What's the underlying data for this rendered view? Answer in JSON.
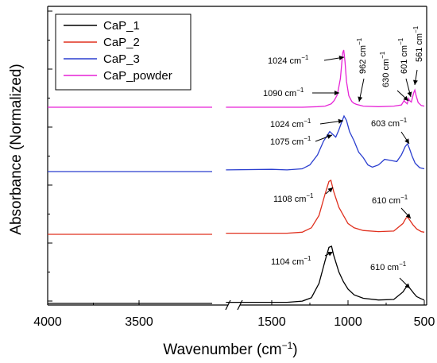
{
  "chart_data": {
    "type": "line",
    "xlabel": "Wavenumber (cm",
    "xlabel_sup": "−1",
    "xlabel_close": ")",
    "ylabel": "Absorbance (Normalized)",
    "x_reversed": true,
    "x_axis_break": [
      3100,
      1800
    ],
    "x_ticks": [
      {
        "value": 4000,
        "label": "4000"
      },
      {
        "value": 3500,
        "label": "3500"
      },
      {
        "value": 1500,
        "label": "1500"
      },
      {
        "value": 1000,
        "label": "1000"
      },
      {
        "value": 500,
        "label": "500"
      }
    ],
    "grid": false,
    "legend_position": "top-left",
    "series": [
      {
        "name": "CaP_1",
        "color": "#000000",
        "baseline": 0,
        "points": [
          [
            4000,
            0
          ],
          [
            3100,
            0
          ],
          [
            1800,
            0.02
          ],
          [
            1400,
            0.02
          ],
          [
            1300,
            0.04
          ],
          [
            1240,
            0.1
          ],
          [
            1190,
            0.35
          ],
          [
            1150,
            0.75
          ],
          [
            1125,
            0.98
          ],
          [
            1108,
            1.0
          ],
          [
            1095,
            0.85
          ],
          [
            1060,
            0.55
          ],
          [
            1030,
            0.38
          ],
          [
            1000,
            0.25
          ],
          [
            960,
            0.15
          ],
          [
            900,
            0.09
          ],
          [
            800,
            0.06
          ],
          [
            700,
            0.07
          ],
          [
            640,
            0.2
          ],
          [
            620,
            0.28
          ],
          [
            605,
            0.3
          ],
          [
            590,
            0.25
          ],
          [
            570,
            0.18
          ],
          [
            550,
            0.12
          ],
          [
            520,
            0.08
          ],
          [
            500,
            0.06
          ]
        ]
      },
      {
        "name": "CaP_2",
        "color": "#e0301e",
        "baseline": 1,
        "points": [
          [
            4000,
            0
          ],
          [
            3100,
            0
          ],
          [
            1800,
            0.02
          ],
          [
            1400,
            0.02
          ],
          [
            1300,
            0.04
          ],
          [
            1240,
            0.12
          ],
          [
            1190,
            0.35
          ],
          [
            1150,
            0.75
          ],
          [
            1125,
            0.98
          ],
          [
            1112,
            1.0
          ],
          [
            1095,
            0.8
          ],
          [
            1060,
            0.5
          ],
          [
            1030,
            0.35
          ],
          [
            1000,
            0.2
          ],
          [
            960,
            0.12
          ],
          [
            900,
            0.07
          ],
          [
            800,
            0.05
          ],
          [
            700,
            0.06
          ],
          [
            640,
            0.2
          ],
          [
            620,
            0.3
          ],
          [
            610,
            0.32
          ],
          [
            595,
            0.26
          ],
          [
            575,
            0.18
          ],
          [
            550,
            0.1
          ],
          [
            520,
            0.05
          ],
          [
            500,
            0.04
          ]
        ]
      },
      {
        "name": "CaP_3",
        "color": "#2b3fcf",
        "baseline": 2,
        "points": [
          [
            4000,
            0
          ],
          [
            3100,
            0
          ],
          [
            1800,
            0.03
          ],
          [
            1500,
            0.04
          ],
          [
            1400,
            0.03
          ],
          [
            1300,
            0.05
          ],
          [
            1250,
            0.12
          ],
          [
            1200,
            0.3
          ],
          [
            1160,
            0.55
          ],
          [
            1120,
            0.72
          ],
          [
            1080,
            0.62
          ],
          [
            1060,
            0.75
          ],
          [
            1040,
            0.9
          ],
          [
            1026,
            1.0
          ],
          [
            1010,
            0.92
          ],
          [
            990,
            0.72
          ],
          [
            960,
            0.55
          ],
          [
            930,
            0.35
          ],
          [
            900,
            0.25
          ],
          [
            870,
            0.12
          ],
          [
            840,
            0.08
          ],
          [
            800,
            0.12
          ],
          [
            760,
            0.22
          ],
          [
            720,
            0.2
          ],
          [
            680,
            0.18
          ],
          [
            650,
            0.3
          ],
          [
            625,
            0.45
          ],
          [
            610,
            0.5
          ],
          [
            598,
            0.42
          ],
          [
            580,
            0.28
          ],
          [
            560,
            0.15
          ],
          [
            530,
            0.07
          ],
          [
            500,
            0.05
          ]
        ]
      },
      {
        "name": "CaP_powder",
        "color": "#e622d6",
        "baseline": 3,
        "points": [
          [
            4000,
            0
          ],
          [
            3100,
            0
          ],
          [
            1800,
            0
          ],
          [
            1300,
            0
          ],
          [
            1200,
            0.01
          ],
          [
            1150,
            0.02
          ],
          [
            1110,
            0.06
          ],
          [
            1090,
            0.12
          ],
          [
            1070,
            0.22
          ],
          [
            1050,
            0.5
          ],
          [
            1035,
            0.95
          ],
          [
            1028,
            1.0
          ],
          [
            1020,
            0.8
          ],
          [
            1010,
            0.45
          ],
          [
            995,
            0.2
          ],
          [
            975,
            0.1
          ],
          [
            962,
            0.07
          ],
          [
            945,
            0.05
          ],
          [
            900,
            0.02
          ],
          [
            800,
            0.01
          ],
          [
            700,
            0.02
          ],
          [
            650,
            0.04
          ],
          [
            632,
            0.12
          ],
          [
            628,
            0.1
          ],
          [
            612,
            0.06
          ],
          [
            602,
            0.15
          ],
          [
            598,
            0.12
          ],
          [
            585,
            0.09
          ],
          [
            570,
            0.25
          ],
          [
            562,
            0.3
          ],
          [
            555,
            0.22
          ],
          [
            540,
            0.08
          ],
          [
            520,
            0.03
          ],
          [
            500,
            0.02
          ]
        ]
      }
    ],
    "annotations": [
      {
        "text": "1104 cm",
        "sup": "−1",
        "series": "CaP_1",
        "x": 1104
      },
      {
        "text": "610 cm",
        "sup": "−1",
        "series": "CaP_1",
        "x": 610
      },
      {
        "text": "1108 cm",
        "sup": "−1",
        "series": "CaP_2",
        "x": 1108
      },
      {
        "text": "610 cm",
        "sup": "−1",
        "series": "CaP_2",
        "x": 610
      },
      {
        "text": "1024 cm",
        "sup": "−1",
        "series": "CaP_3",
        "x": 1024
      },
      {
        "text": "1075 cm",
        "sup": "−1",
        "series": "CaP_3",
        "x": 1075
      },
      {
        "text": "603 cm",
        "sup": "−1",
        "series": "CaP_3",
        "x": 603
      },
      {
        "text": "1024 cm",
        "sup": "−1",
        "series": "CaP_powder",
        "x": 1024
      },
      {
        "text": "1090 cm",
        "sup": "−1",
        "series": "CaP_powder",
        "x": 1090
      },
      {
        "text": "962 cm",
        "sup": "−1",
        "series": "CaP_powder",
        "x": 962
      },
      {
        "text": "630 cm",
        "sup": "−1",
        "series": "CaP_powder",
        "x": 630
      },
      {
        "text": "601 cm",
        "sup": "−1",
        "series": "CaP_powder",
        "x": 601
      },
      {
        "text": "561 cm",
        "sup": "−1",
        "series": "CaP_powder",
        "x": 561
      }
    ]
  }
}
